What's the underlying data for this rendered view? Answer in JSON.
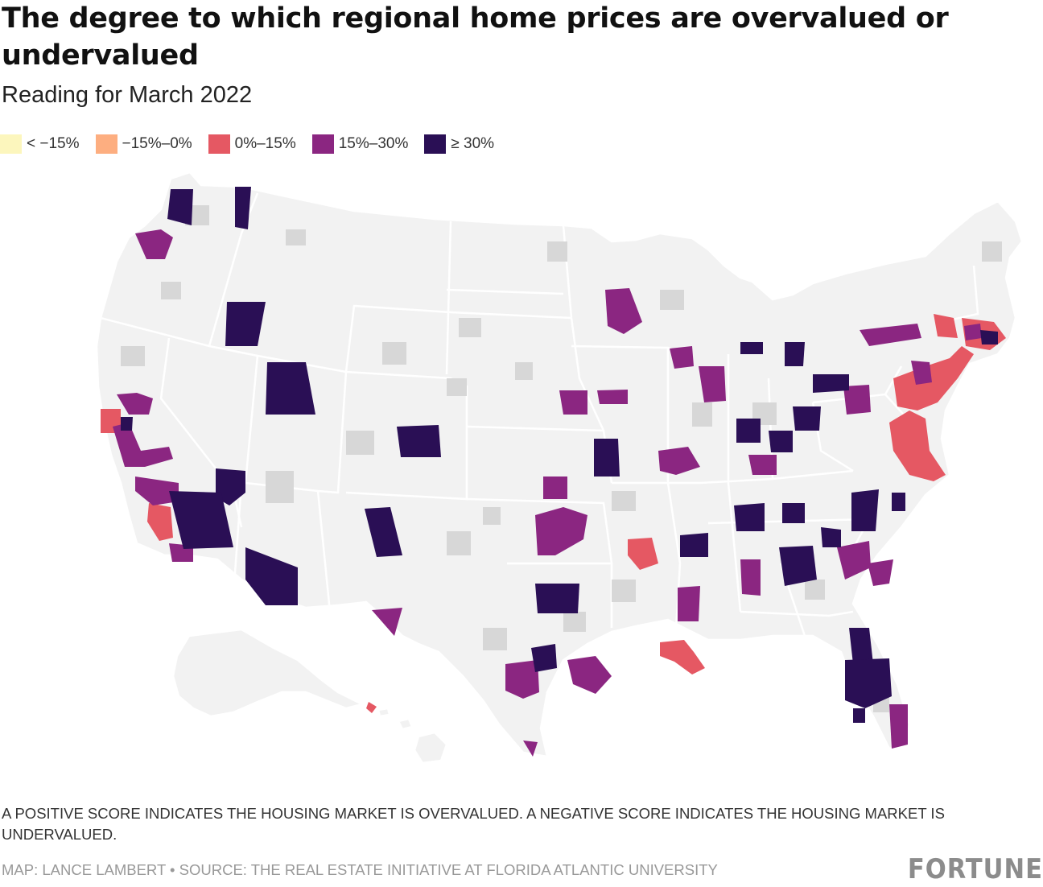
{
  "title": "The degree to which regional home prices are overvalued or undervalued",
  "subtitle": "Reading for March 2022",
  "legend": [
    {
      "label": "< −15%",
      "color": "#fcf6bd"
    },
    {
      "label": "−15%–0%",
      "color": "#fdae80"
    },
    {
      "label": "0%–15%",
      "color": "#e55863"
    },
    {
      "label": "15%–30%",
      "color": "#8b2681"
    },
    {
      "label": "≥ 30%",
      "color": "#2a0f55"
    }
  ],
  "colors": {
    "state": "#f2f2f2",
    "nodata": "#d7d7d7",
    "border": "#ffffff",
    "c0_15": "#e55863",
    "c15_30": "#8b2681",
    "c30": "#2a0f55"
  },
  "note": "A positive score indicates the housing market is overvalued. A negative score indicates the housing market is undervalued.",
  "credit": "MAP: LANCE LAMBERT • SOURCE: THE REAL ESTATE INITIATIVE AT FLORIDA ATLANTIC UNIVERSITY",
  "brand": "FORTUNE"
}
